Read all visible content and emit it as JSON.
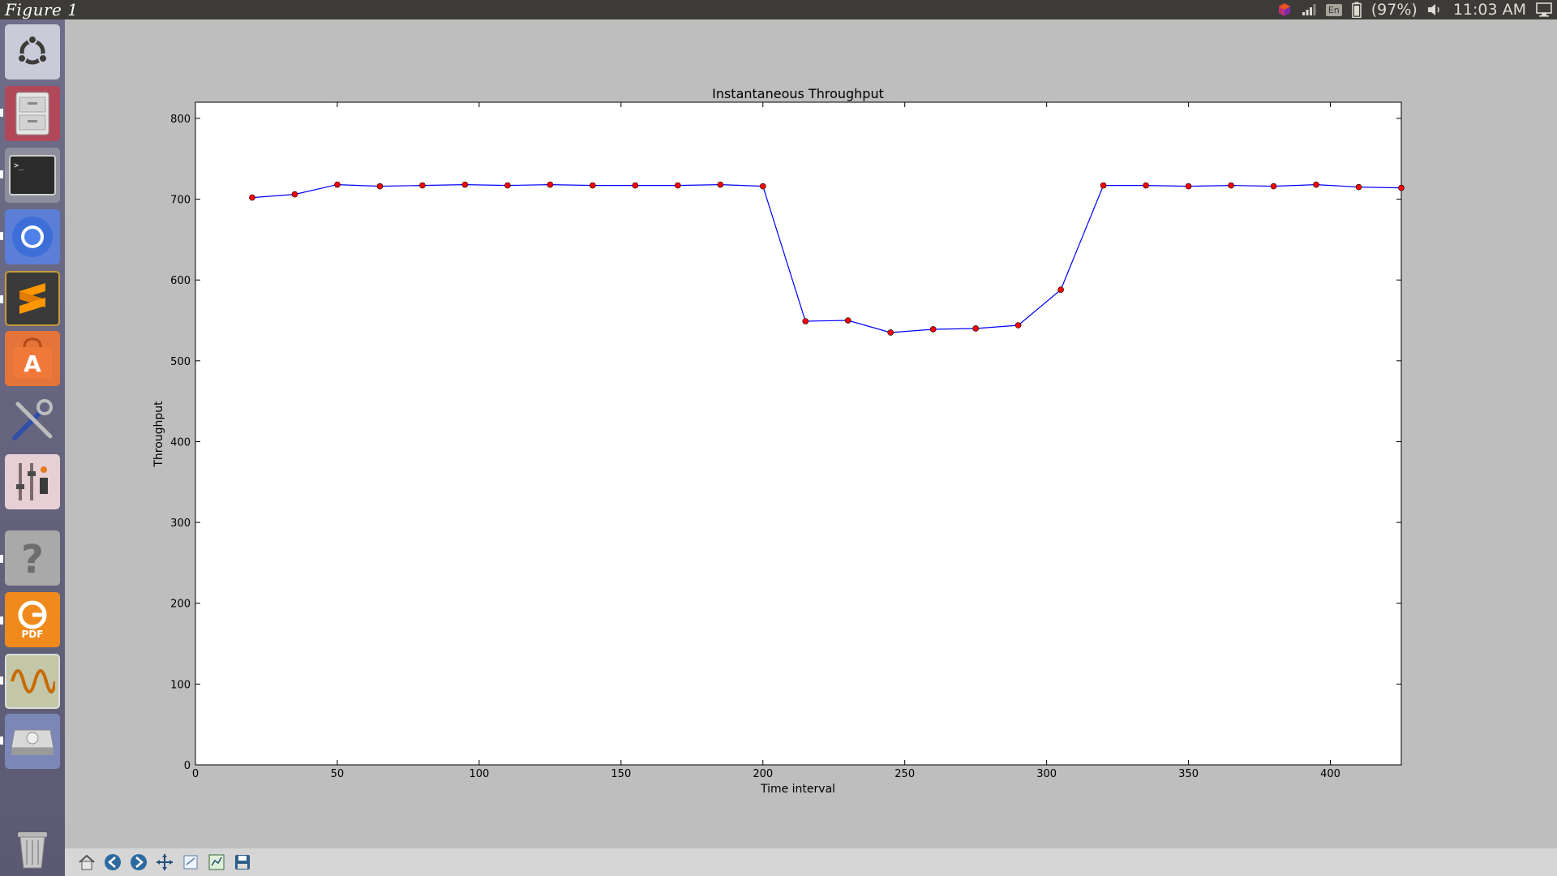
{
  "window": {
    "title": "Figure 1"
  },
  "indicators": {
    "keyboard": "En",
    "battery": "(97%)",
    "clock": "11:03 AM"
  },
  "launcher": {
    "icons": [
      "ubuntu-logo-icon",
      "file-cabinet-icon",
      "terminal-icon",
      "chromium-icon",
      "sublime-text-icon",
      "software-center-icon",
      "system-tools-icon",
      "mixer-settings-icon",
      "help-icon",
      "pdf-reader-icon",
      "oscilloscope-icon",
      "drive-icon",
      "trash-icon"
    ],
    "pdf_label": "PDF"
  },
  "toolbar": {
    "icons": [
      "home-icon",
      "back-icon",
      "forward-icon",
      "pan-icon",
      "zoom-icon",
      "configure-subplots-icon",
      "save-icon"
    ]
  },
  "chart_data": {
    "type": "line",
    "title": "Instantaneous Throughput",
    "xlabel": "Time interval",
    "ylabel": "Throughput",
    "xlim": [
      0,
      425
    ],
    "ylim": [
      0,
      820
    ],
    "xticks": [
      0,
      50,
      100,
      150,
      200,
      250,
      300,
      350,
      400
    ],
    "yticks": [
      0,
      100,
      200,
      300,
      400,
      500,
      600,
      700,
      800
    ],
    "grid": false,
    "line_color": "#0000ff",
    "marker_color": "#ff0000",
    "x": [
      20,
      35,
      50,
      65,
      80,
      95,
      110,
      125,
      140,
      155,
      170,
      185,
      200,
      215,
      230,
      245,
      260,
      275,
      290,
      305,
      320,
      335,
      350,
      365,
      380,
      395,
      410,
      425
    ],
    "y": [
      702,
      706,
      718,
      716,
      717,
      718,
      717,
      718,
      717,
      717,
      717,
      718,
      716,
      549,
      550,
      535,
      539,
      540,
      544,
      588,
      717,
      717,
      716,
      717,
      716,
      718,
      715,
      714
    ]
  }
}
